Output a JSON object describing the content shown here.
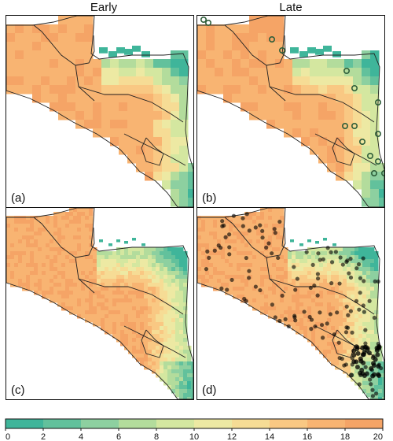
{
  "columns": {
    "early": "Early",
    "late": "Late"
  },
  "panels": [
    {
      "id": "a",
      "label": "(a)",
      "resolution": "coarse",
      "markers": "none"
    },
    {
      "id": "b",
      "label": "(b)",
      "resolution": "coarse",
      "markers": "rings"
    },
    {
      "id": "c",
      "label": "(c)",
      "resolution": "fine",
      "markers": "none"
    },
    {
      "id": "d",
      "label": "(d)",
      "resolution": "fine",
      "markers": "dots"
    }
  ],
  "colorbar": {
    "ticks": [
      "0",
      "2",
      "4",
      "6",
      "8",
      "10",
      "12",
      "14",
      "16",
      "18",
      "20"
    ],
    "min": 0,
    "max": 20,
    "colors": [
      "#3fb59a",
      "#62c19c",
      "#8dd0a0",
      "#b3dc9c",
      "#d4e7a0",
      "#ede9a3",
      "#f6dc95",
      "#f9c883",
      "#f8b472",
      "#f5a466"
    ]
  },
  "colors": {
    "land_boundary": "#222222",
    "marker_ring": "#2e5e3a",
    "marker_dot": "#000000"
  }
}
